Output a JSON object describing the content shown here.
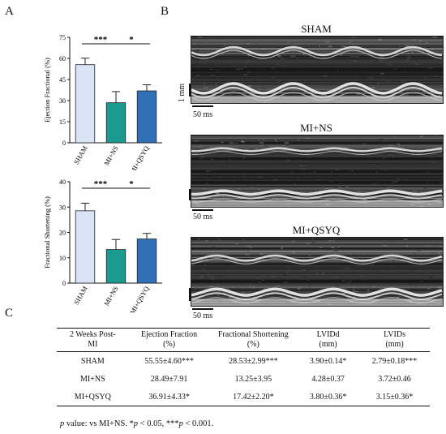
{
  "panel_labels": {
    "a": "A",
    "b": "B",
    "c": "C"
  },
  "chart_data": [
    {
      "type": "bar",
      "ylabel": "Ejection Fractional (%)",
      "categories": [
        "SHAM",
        "MI+NS",
        "MI+QSYQ"
      ],
      "values": [
        55.55,
        28.49,
        36.91
      ],
      "errors": [
        4.6,
        7.91,
        4.33
      ],
      "ylim": [
        0,
        75
      ],
      "yticks": [
        0,
        15,
        30,
        45,
        60,
        75
      ],
      "colors": [
        "#dbe4f6",
        "#1b9a8f",
        "#2f70b6"
      ],
      "significance": [
        {
          "label": "***",
          "from": 0,
          "to": 1
        },
        {
          "label": "*",
          "from": 1,
          "to": 2
        }
      ]
    },
    {
      "type": "bar",
      "ylabel": "Fractional Shortening (%)",
      "categories": [
        "SHAM",
        "MI+NS",
        "MI+QSYQ"
      ],
      "values": [
        28.53,
        13.25,
        17.42
      ],
      "errors": [
        2.99,
        3.95,
        2.2
      ],
      "ylim": [
        0,
        40
      ],
      "yticks": [
        0,
        10,
        20,
        30,
        40
      ],
      "colors": [
        "#dbe4f6",
        "#1b9a8f",
        "#2f70b6"
      ],
      "significance": [
        {
          "label": "***",
          "from": 0,
          "to": 1
        },
        {
          "label": "*",
          "from": 1,
          "to": 2
        }
      ]
    }
  ],
  "echo": {
    "panels": [
      {
        "title": "SHAM"
      },
      {
        "title": "MI+NS"
      },
      {
        "title": "MI+QSYQ"
      }
    ],
    "scale_vertical": "1 mm",
    "scale_horizontal": "50 ms"
  },
  "table": {
    "headers": [
      {
        "l1": "2 Weeks Post-",
        "l2": "MI"
      },
      {
        "l1": "Ejection Fraction",
        "l2": "(%)"
      },
      {
        "l1": "Fractional Shortening",
        "l2": "(%)"
      },
      {
        "l1": "LVIDd",
        "l2": "(mm)"
      },
      {
        "l1": "LVIDs",
        "l2": "(mm)"
      }
    ],
    "rows": [
      [
        "SHAM",
        "55.55±4.60***",
        "28.53±2.99***",
        "3.90±0.14*",
        "2.79±0.18***"
      ],
      [
        "MI+NS",
        "28.49±7.91",
        "13.25±3.95",
        "4.28±0.37",
        "3.72±0.46"
      ],
      [
        "MI+QSYQ",
        "36.91±4.33*",
        "17.42±2.20*",
        "3.80±0.36*",
        "3.15±0.36*"
      ]
    ]
  },
  "footnote": {
    "p": "p",
    "t1": " value: vs MI+NS. *",
    "t2": " < 0.05, ***",
    "t3": " < 0.001."
  }
}
